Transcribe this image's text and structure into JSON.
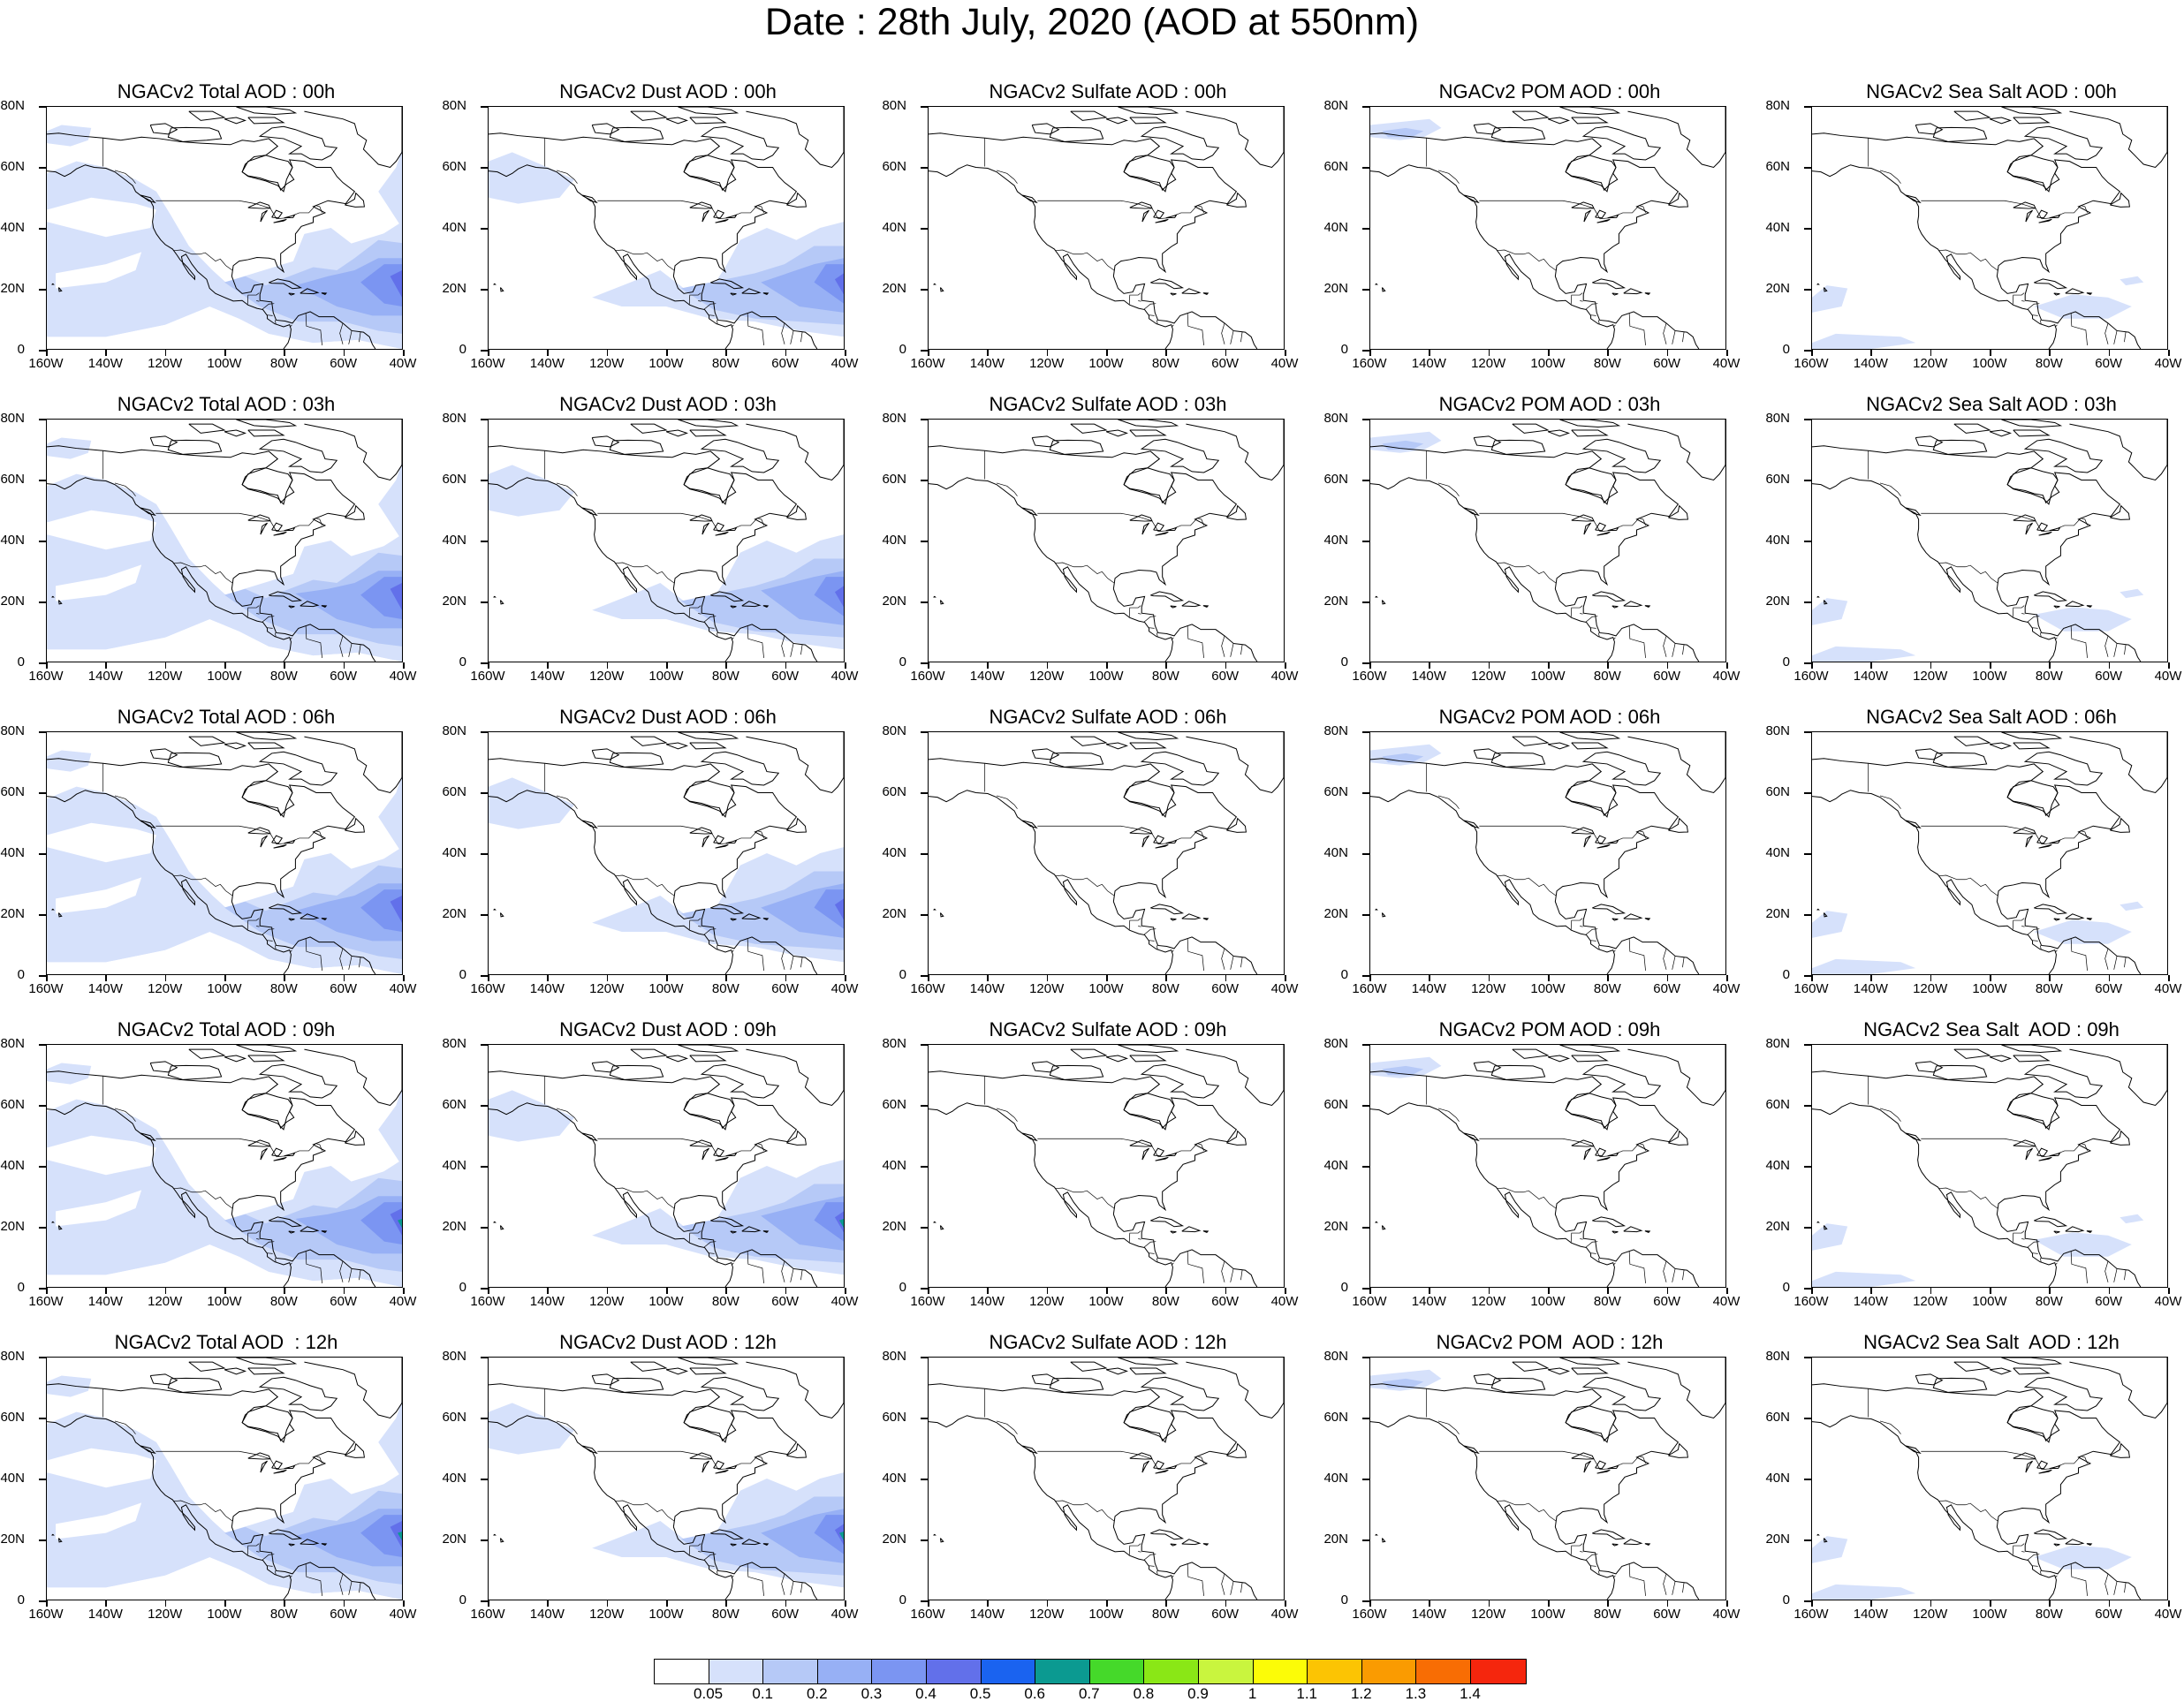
{
  "title": "Date : 28th July, 2020 (AOD at 550nm)",
  "panels": [
    [
      {
        "title": "NGACv2 Total AOD : 00h",
        "field": "total"
      },
      {
        "title": "NGACv2 Dust AOD : 00h",
        "field": "dust"
      },
      {
        "title": "NGACv2 Sulfate AOD : 00h",
        "field": "sulfate"
      },
      {
        "title": "NGACv2 POM AOD : 00h",
        "field": "pom"
      },
      {
        "title": "NGACv2 Sea Salt AOD : 00h",
        "field": "seasalt"
      }
    ],
    [
      {
        "title": "NGACv2 Total AOD : 03h",
        "field": "total"
      },
      {
        "title": "NGACv2 Dust AOD : 03h",
        "field": "dust"
      },
      {
        "title": "NGACv2 Sulfate AOD : 03h",
        "field": "sulfate"
      },
      {
        "title": "NGACv2 POM AOD : 03h",
        "field": "pom"
      },
      {
        "title": "NGACv2 Sea Salt AOD : 03h",
        "field": "seasalt"
      }
    ],
    [
      {
        "title": "NGACv2 Total AOD : 06h",
        "field": "total"
      },
      {
        "title": "NGACv2 Dust AOD : 06h",
        "field": "dust"
      },
      {
        "title": "NGACv2 Sulfate AOD : 06h",
        "field": "sulfate"
      },
      {
        "title": "NGACv2 POM AOD : 06h",
        "field": "pom"
      },
      {
        "title": "NGACv2 Sea Salt AOD : 06h",
        "field": "seasalt"
      }
    ],
    [
      {
        "title": "NGACv2 Total AOD : 09h",
        "field": "total"
      },
      {
        "title": "NGACv2 Dust AOD : 09h",
        "field": "dust"
      },
      {
        "title": "NGACv2 Sulfate AOD : 09h",
        "field": "sulfate"
      },
      {
        "title": "NGACv2 POM AOD : 09h",
        "field": "pom"
      },
      {
        "title": "NGACv2 Sea Salt  AOD : 09h",
        "field": "seasalt"
      }
    ],
    [
      {
        "title": "NGACv2 Total AOD  : 12h",
        "field": "total"
      },
      {
        "title": "NGACv2 Dust AOD : 12h",
        "field": "dust"
      },
      {
        "title": "NGACv2 Sulfate AOD : 12h",
        "field": "sulfate"
      },
      {
        "title": "NGACv2 POM  AOD : 12h",
        "field": "pom"
      },
      {
        "title": "NGACv2 Sea Salt  AOD : 12h",
        "field": "seasalt"
      }
    ]
  ],
  "lat_ticks": [
    "80N",
    "60N",
    "40N",
    "20N",
    "0"
  ],
  "lon_ticks": [
    "160W",
    "140W",
    "120W",
    "100W",
    "80W",
    "60W",
    "40W"
  ],
  "colorbar": {
    "colors": [
      "#ffffff",
      "#d6e1fb",
      "#b6c9f7",
      "#97b0f5",
      "#7b95f2",
      "#6270ea",
      "#1a63f0",
      "#0b9a91",
      "#45d92a",
      "#8ae716",
      "#c9f53e",
      "#fcfc07",
      "#fcc403",
      "#fa9b01",
      "#f86d04",
      "#f5260d"
    ],
    "labels": [
      "0.05",
      "0.1",
      "0.2",
      "0.3",
      "0.4",
      "0.5",
      "0.6",
      "0.7",
      "0.8",
      "0.9",
      "1",
      "1.1",
      "1.2",
      "1.3",
      "1.4"
    ]
  }
}
